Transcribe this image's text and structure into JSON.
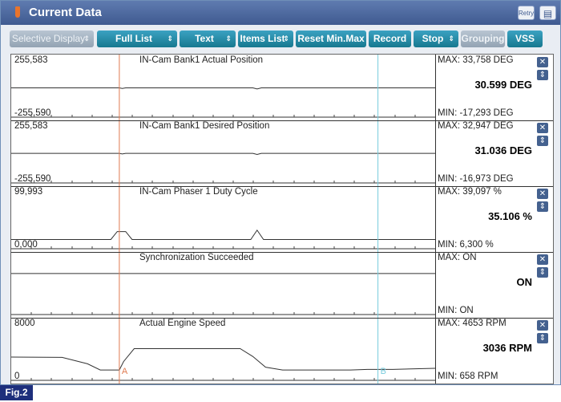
{
  "window": {
    "title": "Current Data",
    "retry_label": "Retry",
    "title_icon": "tool-icon",
    "title_color": "#4d6aa1"
  },
  "toolbar": {
    "selective_display": "Selective Display",
    "full_list": "Full List",
    "text": "Text",
    "items_list": "Items List",
    "reset": "Reset Min.Max",
    "record": "Record",
    "stop": "Stop",
    "grouping": "Grouping",
    "vss": "VSS",
    "button_color": "#1f8aa6",
    "disabled_color": "#a6b4c2"
  },
  "cursors": {
    "a_label": "A",
    "b_label": "B",
    "a_color": "#e07a50",
    "b_color": "#77ccdd",
    "a_position": 0.255,
    "b_position": 0.865
  },
  "panels": [
    {
      "name": "IN-Cam Bank1 Actual Position",
      "max_label": "255,583",
      "min_label": "-255,590",
      "max": "MAX: 33,758 DEG",
      "min": "MIN: -17,293 DEG",
      "value": "30.599 DEG",
      "y_min": -255.59,
      "y_max": 255.583,
      "samples": [
        [
          0,
          5
        ],
        [
          0.2,
          5
        ],
        [
          0.255,
          5
        ],
        [
          0.262,
          -2
        ],
        [
          0.27,
          5
        ],
        [
          0.57,
          5
        ],
        [
          0.58,
          -8
        ],
        [
          0.59,
          5
        ],
        [
          1,
          5
        ]
      ]
    },
    {
      "name": "IN-Cam Bank1 Desired Position",
      "max_label": "255,583",
      "min_label": "-255,590",
      "max": "MAX: 32,947 DEG",
      "min": "MIN: -16,973 DEG",
      "value": "31.036 DEG",
      "y_min": -255.59,
      "y_max": 255.583,
      "samples": [
        [
          0,
          8
        ],
        [
          0.2,
          8
        ],
        [
          0.255,
          8
        ],
        [
          0.262,
          1
        ],
        [
          0.27,
          8
        ],
        [
          0.57,
          8
        ],
        [
          0.58,
          -5
        ],
        [
          0.59,
          8
        ],
        [
          1,
          8
        ]
      ]
    },
    {
      "name": "IN-Cam Phaser 1 Duty Cycle",
      "max_label": "99,993",
      "min_label": "0,000",
      "max": "MAX: 39,097 %",
      "min": "MIN: 6,300 %",
      "value": "35.106 %",
      "y_min": 0,
      "y_max": 99.993,
      "samples": [
        [
          0,
          6.3
        ],
        [
          0.235,
          6.3
        ],
        [
          0.25,
          24
        ],
        [
          0.27,
          24
        ],
        [
          0.285,
          6.3
        ],
        [
          0.565,
          6.3
        ],
        [
          0.58,
          27
        ],
        [
          0.595,
          6.3
        ],
        [
          1,
          6.3
        ]
      ]
    },
    {
      "name": "Synchronization Succeeded",
      "max_label": "",
      "min_label": "",
      "max": "MAX: ON",
      "min": "MIN: ON",
      "value": "ON",
      "y_min": 0,
      "y_max": 1,
      "samples": [
        [
          0,
          0.77
        ],
        [
          1,
          0.77
        ]
      ]
    },
    {
      "name": "Actual Engine Speed",
      "max_label": "8000",
      "min_label": "0",
      "max": "MAX:  4653 RPM",
      "min": "MIN:   658 RPM",
      "value": "3036 RPM",
      "y_min": 0,
      "y_max": 8000,
      "samples": [
        [
          0,
          3000
        ],
        [
          0.12,
          2950
        ],
        [
          0.18,
          1800
        ],
        [
          0.21,
          700
        ],
        [
          0.255,
          700
        ],
        [
          0.265,
          2200
        ],
        [
          0.29,
          4500
        ],
        [
          0.54,
          4500
        ],
        [
          0.57,
          3100
        ],
        [
          0.6,
          1200
        ],
        [
          0.64,
          700
        ],
        [
          0.8,
          700
        ],
        [
          0.84,
          800
        ],
        [
          0.9,
          800
        ],
        [
          1,
          1000
        ]
      ]
    }
  ],
  "figure_label": "Fig.2"
}
